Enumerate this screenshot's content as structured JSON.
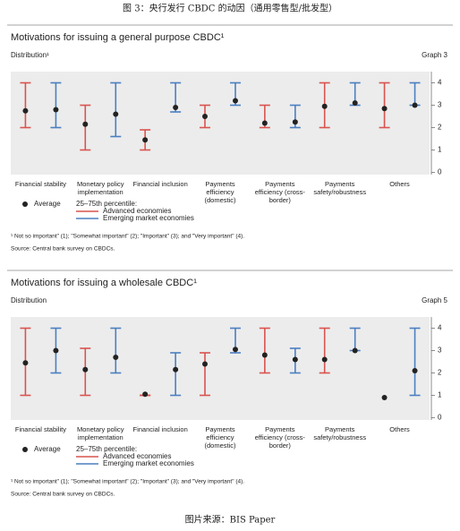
{
  "header": {
    "caption": "图 3：央行发行 CBDC 的动因（通用零售型/批发型）"
  },
  "chart_data": [
    {
      "type": "range",
      "title": "Motivations for issuing a general purpose CBDC¹",
      "subtitle": "Distribution¹",
      "graph_label": "Graph 3",
      "categories": [
        "Financial stability",
        "Monetary policy implementation",
        "Financial inclusion",
        "Payments efficiency (domestic)",
        "Payments efficiency (cross-border)",
        "Payments safety/robustness",
        "Others"
      ],
      "series": [
        {
          "name": "Advanced economies",
          "color": "#d9534f",
          "low": [
            2,
            1,
            1,
            2,
            2,
            2,
            2
          ],
          "high": [
            4,
            3,
            1.9,
            3,
            3,
            4,
            4
          ],
          "average": [
            2.75,
            2.15,
            1.45,
            2.5,
            2.2,
            2.95,
            2.85
          ]
        },
        {
          "name": "Emerging market economies",
          "color": "#4a7fc1",
          "low": [
            2,
            1.6,
            2.7,
            3,
            2,
            3,
            3
          ],
          "high": [
            4,
            4,
            4,
            4,
            3,
            4,
            4
          ],
          "average": [
            2.8,
            2.6,
            2.9,
            3.2,
            2.25,
            3.1,
            3.0
          ]
        }
      ],
      "legend_average": "Average",
      "legend_range": "25–75th percentile:",
      "ylim": [
        -0.1,
        4.5
      ],
      "yticks": [
        0,
        1,
        2,
        3,
        4
      ],
      "footnote": "¹ Not so important\" (1); \"Somewhat important\" (2); \"Important\" (3); and \"Very important\" (4).",
      "source": "Source: Central bank survey on CBDCs."
    },
    {
      "type": "range",
      "title": "Motivations for issuing a wholesale CBDC¹",
      "subtitle": "Distribution",
      "graph_label": "Graph 5",
      "categories": [
        "Financial stability",
        "Monetary policy implementation",
        "Financial inclusion",
        "Payments efficiency (domestic)",
        "Payments efficiency (cross-border)",
        "Payments safety/robustness",
        "Others"
      ],
      "series": [
        {
          "name": "Advanced economies",
          "color": "#d9534f",
          "low": [
            1,
            1,
            1,
            1,
            2,
            2,
            null
          ],
          "high": [
            4,
            3.1,
            1,
            2.9,
            4,
            4,
            null
          ],
          "average": [
            2.45,
            2.15,
            1.05,
            2.4,
            2.8,
            2.6,
            0.9
          ]
        },
        {
          "name": "Emerging market economies",
          "color": "#4a7fc1",
          "low": [
            2,
            2,
            1,
            2.9,
            2,
            3,
            1
          ],
          "high": [
            4,
            4,
            2.9,
            4,
            3.1,
            4,
            4
          ],
          "average": [
            3.0,
            2.7,
            2.15,
            3.05,
            2.6,
            3.0,
            2.1
          ]
        }
      ],
      "legend_average": "Average",
      "legend_range": "25–75th percentile:",
      "ylim": [
        -0.1,
        4.5
      ],
      "yticks": [
        0,
        1,
        2,
        3,
        4
      ],
      "footnote": "¹ Not so important\" (1); \"Somewhat important\" (2); \"Important\" (3); and \"Very important\" (4).",
      "source": "Source: Central bank survey on CBDCs."
    }
  ],
  "footer": {
    "caption": "图片来源：BIS Paper"
  }
}
